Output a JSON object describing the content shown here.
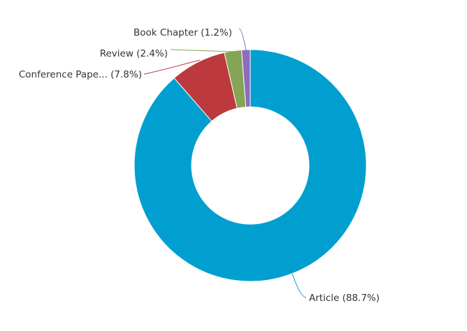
{
  "chart_data": {
    "type": "pie",
    "donut": true,
    "legend": "none",
    "slices": [
      {
        "name": "Article",
        "value": 88.7,
        "label": "Article (88.7%)",
        "color": "#009fd0",
        "leader_color": "#009fd0"
      },
      {
        "name": "Conference Pape...",
        "value": 7.8,
        "label": "Conference Pape... (7.8%)",
        "color": "#bc3a3d",
        "leader_color": "#bc3a3d"
      },
      {
        "name": "Review",
        "value": 2.4,
        "label": "Review (2.4%)",
        "color": "#85a454",
        "leader_color": "#85a454"
      },
      {
        "name": "Book Chapter",
        "value": 1.2,
        "label": "Book Chapter (1.2%)",
        "color": "#8d6bbd",
        "leader_color": "#8d6bbd"
      }
    ]
  }
}
